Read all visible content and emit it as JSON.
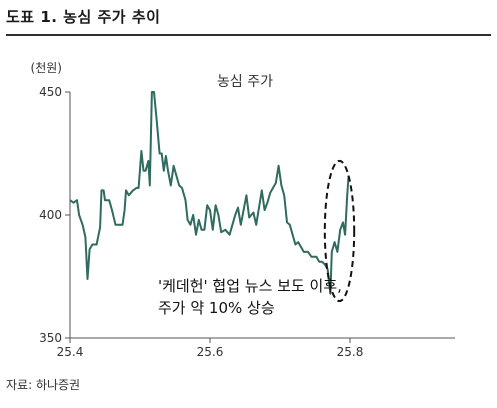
{
  "header": {
    "title": "도표 1. 농심 주가 추이"
  },
  "source": "자료: 하나증권",
  "chart_data": {
    "type": "line",
    "ylabel": "(천원)",
    "ylim": [
      350,
      450
    ],
    "yticks": [
      350,
      400,
      450
    ],
    "xlim": [
      25.4,
      25.9
    ],
    "xticks": [
      {
        "value": 25.4,
        "label": "25.4"
      },
      {
        "value": 25.6,
        "label": "25.6"
      },
      {
        "value": 25.8,
        "label": "25.8"
      }
    ],
    "series": [
      {
        "name": "농심 주가",
        "color": "#2f6b5f",
        "points": [
          [
            25.4,
            406
          ],
          [
            25.405,
            405
          ],
          [
            25.41,
            406
          ],
          [
            25.413,
            400
          ],
          [
            25.418,
            396
          ],
          [
            25.422,
            391
          ],
          [
            25.425,
            374
          ],
          [
            25.428,
            386
          ],
          [
            25.432,
            388
          ],
          [
            25.438,
            388
          ],
          [
            25.443,
            395
          ],
          [
            25.445,
            410
          ],
          [
            25.448,
            410
          ],
          [
            25.45,
            406
          ],
          [
            25.456,
            406
          ],
          [
            25.46,
            402
          ],
          [
            25.465,
            396
          ],
          [
            25.47,
            396
          ],
          [
            25.475,
            396
          ],
          [
            25.478,
            402
          ],
          [
            25.48,
            410
          ],
          [
            25.484,
            408
          ],
          [
            25.49,
            410
          ],
          [
            25.495,
            411
          ],
          [
            25.498,
            411
          ],
          [
            25.502,
            426
          ],
          [
            25.505,
            418
          ],
          [
            25.508,
            418
          ],
          [
            25.512,
            422
          ],
          [
            25.514,
            412
          ],
          [
            25.517,
            450
          ],
          [
            25.52,
            450
          ],
          [
            25.524,
            438
          ],
          [
            25.528,
            425
          ],
          [
            25.531,
            425
          ],
          [
            25.534,
            418
          ],
          [
            25.537,
            424
          ],
          [
            25.54,
            418
          ],
          [
            25.544,
            412
          ],
          [
            25.548,
            420
          ],
          [
            25.552,
            416
          ],
          [
            25.556,
            412
          ],
          [
            25.56,
            411
          ],
          [
            25.565,
            406
          ],
          [
            25.568,
            398
          ],
          [
            25.572,
            396
          ],
          [
            25.576,
            400
          ],
          [
            25.58,
            392
          ],
          [
            25.584,
            398
          ],
          [
            25.588,
            394
          ],
          [
            25.592,
            394
          ],
          [
            25.596,
            404
          ],
          [
            25.6,
            402
          ],
          [
            25.604,
            394
          ],
          [
            25.608,
            404
          ],
          [
            25.612,
            400
          ],
          [
            25.616,
            393
          ],
          [
            25.622,
            394
          ],
          [
            25.628,
            392
          ],
          [
            25.632,
            396
          ],
          [
            25.636,
            400
          ],
          [
            25.64,
            403
          ],
          [
            25.644,
            396
          ],
          [
            25.648,
            402
          ],
          [
            25.652,
            408
          ],
          [
            25.656,
            399
          ],
          [
            25.662,
            401
          ],
          [
            25.666,
            396
          ],
          [
            25.67,
            403
          ],
          [
            25.674,
            410
          ],
          [
            25.678,
            402
          ],
          [
            25.682,
            405
          ],
          [
            25.686,
            409
          ],
          [
            25.69,
            411
          ],
          [
            25.694,
            413
          ],
          [
            25.698,
            420
          ],
          [
            25.702,
            412
          ],
          [
            25.706,
            408
          ],
          [
            25.71,
            397
          ],
          [
            25.714,
            396
          ],
          [
            25.718,
            392
          ],
          [
            25.722,
            388
          ],
          [
            25.726,
            389
          ],
          [
            25.73,
            387
          ],
          [
            25.734,
            385
          ],
          [
            25.74,
            385
          ],
          [
            25.745,
            383
          ],
          [
            25.752,
            383
          ],
          [
            25.756,
            381
          ],
          [
            25.76,
            381
          ],
          [
            25.764,
            380
          ],
          [
            25.768,
            378
          ],
          [
            25.772,
            368
          ],
          [
            25.774,
            385
          ],
          [
            25.778,
            389
          ],
          [
            25.782,
            385
          ],
          [
            25.786,
            394
          ],
          [
            25.79,
            397
          ],
          [
            25.793,
            392
          ],
          [
            25.796,
            408
          ],
          [
            25.798,
            416
          ]
        ]
      }
    ],
    "annotation": {
      "lines": [
        "'케데헌' 협업 뉴스 보도 이후,",
        "주가 약 10% 상승"
      ],
      "highlight": {
        "x": [
          25.764,
          25.806
        ],
        "y": [
          365,
          422
        ]
      }
    }
  }
}
